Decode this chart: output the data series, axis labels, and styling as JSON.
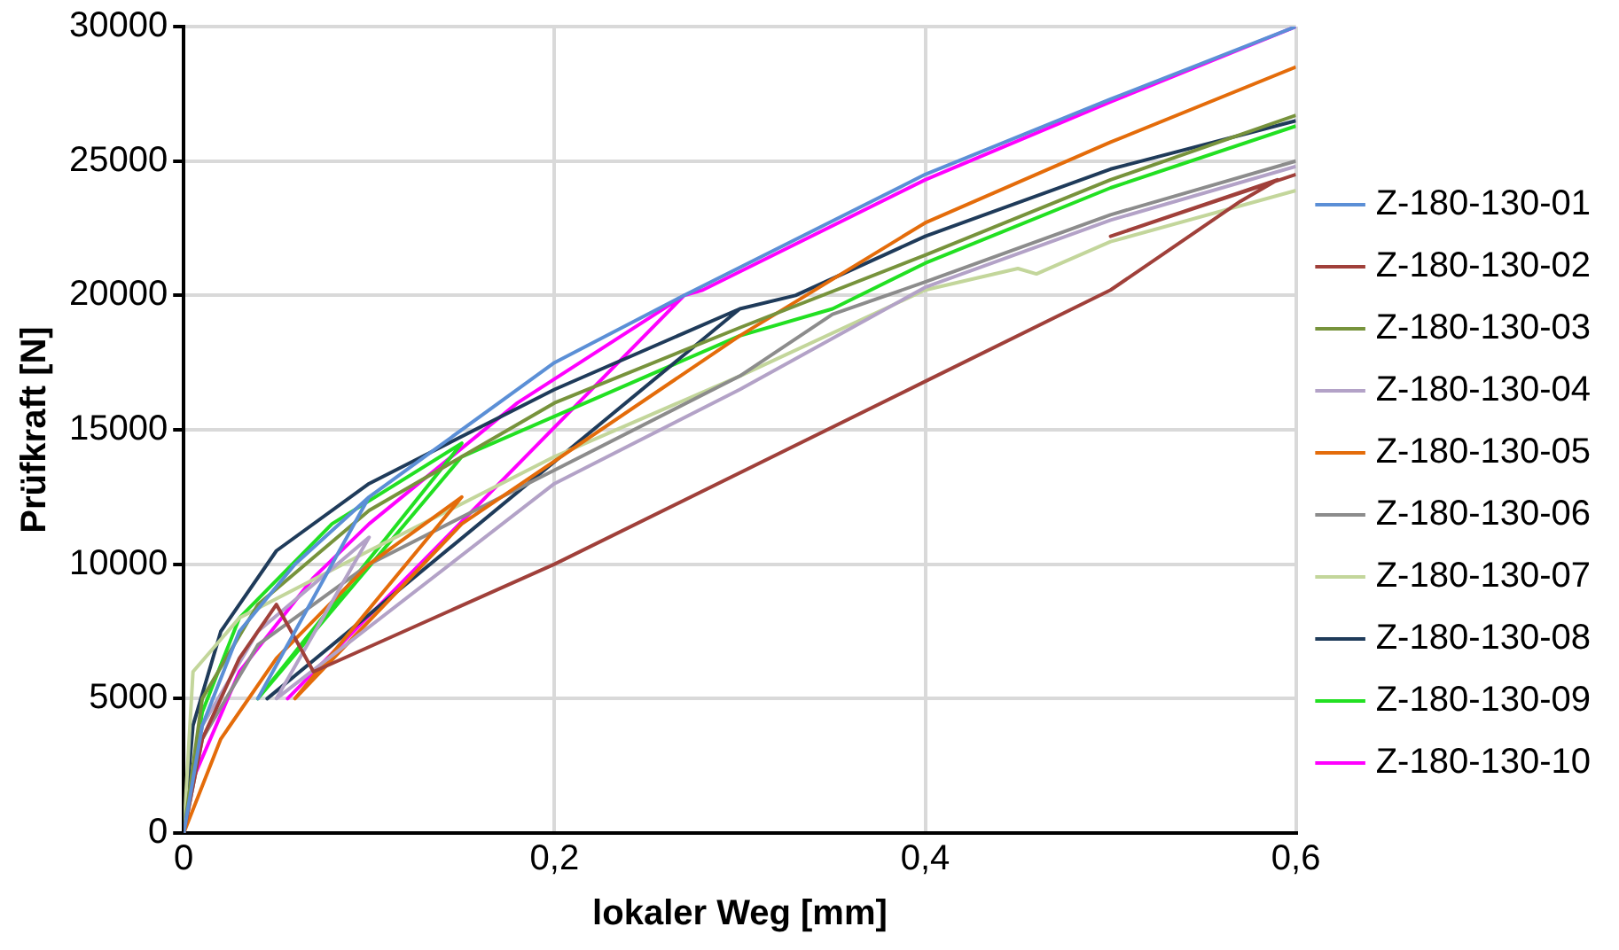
{
  "chart_data": {
    "type": "line",
    "xlabel": "lokaler Weg [mm]",
    "ylabel": "Prüfkraft [N]",
    "xlim": [
      0,
      0.6
    ],
    "xticks": [
      0,
      {
        "value": 0.2,
        "label": "0,2"
      },
      {
        "value": 0.4,
        "label": "0,4"
      },
      {
        "value": 0.6,
        "label": "0,6"
      }
    ],
    "ylim": [
      0,
      30000
    ],
    "yticks": [
      0,
      5000,
      10000,
      15000,
      20000,
      25000,
      30000
    ],
    "grid": true,
    "legend": "right",
    "marker": "none",
    "line_style": "solid",
    "series": [
      {
        "name": "Z-180-130-01",
        "color": "#5b8fd6",
        "x": [
          0,
          0.01,
          0.03,
          0.06,
          0.1,
          0.04,
          0.1,
          0.2,
          0.27,
          0.4,
          0.5,
          0.6
        ],
        "values": [
          0,
          4000,
          7500,
          10000,
          12500,
          5000,
          12500,
          17500,
          20000,
          24500,
          27300,
          30000
        ]
      },
      {
        "name": "Z-180-130-02",
        "color": "#a0403a",
        "x": [
          0,
          0.01,
          0.03,
          0.05,
          0.07,
          0.2,
          0.4,
          0.5,
          0.57,
          0.59,
          0.5,
          0.6
        ],
        "values": [
          0,
          3500,
          6500,
          8500,
          6000,
          10000,
          16800,
          20200,
          23500,
          24300,
          22200,
          24500
        ]
      },
      {
        "name": "Z-180-130-03",
        "color": "#77933c",
        "x": [
          0,
          0.01,
          0.04,
          0.1,
          0.2,
          0.3,
          0.4,
          0.5,
          0.6
        ],
        "values": [
          0,
          5000,
          8500,
          12000,
          16000,
          18800,
          21500,
          24300,
          26700
        ]
      },
      {
        "name": "Z-180-130-04",
        "color": "#b3a2c7",
        "x": [
          0,
          0.01,
          0.04,
          0.1,
          0.05,
          0.2,
          0.3,
          0.4,
          0.5,
          0.6
        ],
        "values": [
          0,
          4000,
          7500,
          11000,
          5000,
          13000,
          16500,
          20300,
          22800,
          24800
        ]
      },
      {
        "name": "Z-180-130-05",
        "color": "#e46c0a",
        "x": [
          0,
          0.02,
          0.05,
          0.1,
          0.15,
          0.06,
          0.15,
          0.3,
          0.4,
          0.5,
          0.6
        ],
        "values": [
          0,
          3500,
          6500,
          10000,
          12500,
          5000,
          11500,
          18500,
          22700,
          25700,
          28500
        ]
      },
      {
        "name": "Z-180-130-06",
        "color": "#8c8c8c",
        "x": [
          0,
          0.01,
          0.04,
          0.1,
          0.2,
          0.3,
          0.35,
          0.4,
          0.5,
          0.6
        ],
        "values": [
          0,
          3500,
          7000,
          10000,
          13500,
          17000,
          19300,
          20500,
          23000,
          25000
        ]
      },
      {
        "name": "Z-180-130-07",
        "color": "#c3d69b",
        "x": [
          0,
          0.005,
          0.03,
          0.1,
          0.2,
          0.3,
          0.4,
          0.45,
          0.46,
          0.5,
          0.6
        ],
        "values": [
          0,
          6000,
          8000,
          10500,
          14000,
          17000,
          20200,
          21000,
          20800,
          22000,
          23900
        ]
      },
      {
        "name": "Z-180-130-08",
        "color": "#1f3b5a",
        "x": [
          0,
          0.005,
          0.02,
          0.05,
          0.1,
          0.2,
          0.3,
          0.045,
          0.3,
          0.33,
          0.4,
          0.5,
          0.6
        ],
        "values": [
          0,
          4000,
          7500,
          10500,
          13000,
          16500,
          19500,
          5000,
          19500,
          20000,
          22200,
          24700,
          26500
        ]
      },
      {
        "name": "Z-180-130-09",
        "color": "#22e022",
        "x": [
          0,
          0.01,
          0.03,
          0.08,
          0.15,
          0.04,
          0.15,
          0.3,
          0.35,
          0.4,
          0.5,
          0.6
        ],
        "values": [
          0,
          4500,
          8000,
          11500,
          14500,
          5000,
          14000,
          18500,
          19500,
          21200,
          24000,
          26300
        ]
      },
      {
        "name": "Z-180-130-10",
        "color": "#ff00ff",
        "x": [
          0,
          0.005,
          0.03,
          0.07,
          0.1,
          0.18,
          0.27,
          0.056,
          0.27,
          0.28,
          0.4,
          0.5,
          0.6
        ],
        "values": [
          0,
          2000,
          6000,
          9500,
          11500,
          16000,
          20000,
          5000,
          20000,
          20200,
          24300,
          27200,
          30000
        ]
      }
    ]
  }
}
